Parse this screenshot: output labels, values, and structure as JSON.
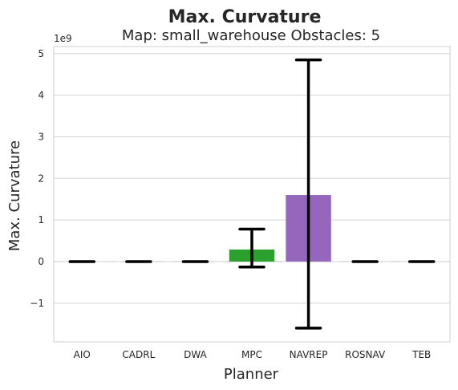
{
  "chart_data": {
    "type": "bar",
    "title": "Max. Curvature",
    "subtitle": "Map: small_warehouse Obstacles: 5",
    "xlabel": "Planner",
    "ylabel": "Max. Curvature",
    "y_offset_label": "1e9",
    "categories": [
      "AIO",
      "CADRL",
      "DWA",
      "MPC",
      "NAVREP",
      "ROSNAV",
      "TEB"
    ],
    "values": [
      0,
      0,
      0,
      0.29,
      1.6,
      0,
      0
    ],
    "error_low": [
      0,
      0,
      0,
      -0.13,
      -1.6,
      0,
      0
    ],
    "error_high": [
      0,
      0,
      0,
      0.78,
      4.85,
      0,
      0
    ],
    "colors": [
      "#1f77b4",
      "#ff7f0e",
      "#2ca02c",
      "#2ca02c",
      "#9467bd",
      "#8c564b",
      "#e377c2"
    ],
    "ylim": [
      -1.93,
      5.17
    ],
    "yticks": [
      -1,
      0,
      1,
      2,
      3,
      4,
      5
    ],
    "ytick_labels": [
      "−1",
      "0",
      "1",
      "2",
      "3",
      "4",
      "5"
    ],
    "grid": true
  }
}
